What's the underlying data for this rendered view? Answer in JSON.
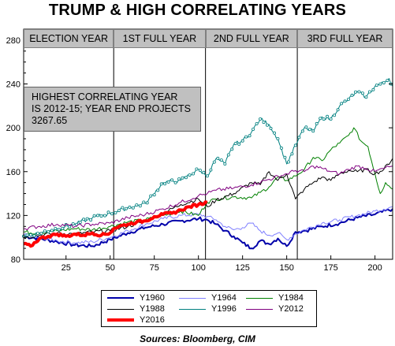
{
  "chart_data": {
    "type": "line",
    "title": "TRUMP & HIGH CORRELATING YEARS",
    "source": "Sources:  Bloomberg, CIM",
    "xlim": [
      1,
      210
    ],
    "ylim": [
      80,
      290
    ],
    "x_ticks": [
      25,
      50,
      75,
      100,
      125,
      150,
      175,
      200
    ],
    "y_ticks": [
      80,
      120,
      160,
      200,
      240,
      280
    ],
    "grid": false,
    "legend_position": "bottom",
    "phases": [
      {
        "label": "ELECTION YEAR",
        "start": 1,
        "end": 52
      },
      {
        "label": "1ST FULL YEAR",
        "start": 52,
        "end": 104
      },
      {
        "label": "2ND FULL YEAR",
        "start": 104,
        "end": 156
      },
      {
        "label": "3RD FULL YEAR",
        "start": 156,
        "end": 210
      }
    ],
    "phase_dividers": [
      52,
      104,
      156
    ],
    "annotation": [
      "HIGHEST CORRELATING YEAR",
      "IS 2012-15; YEAR END PROJECTS",
      "3267.65"
    ],
    "series": [
      {
        "name": "Y1960",
        "color": "#0000aa",
        "width": 2,
        "marker": false,
        "points": [
          [
            1,
            101
          ],
          [
            10,
            99
          ],
          [
            20,
            96
          ],
          [
            30,
            93
          ],
          [
            40,
            92
          ],
          [
            50,
            98
          ],
          [
            60,
            104
          ],
          [
            70,
            109
          ],
          [
            80,
            112
          ],
          [
            90,
            115
          ],
          [
            100,
            117
          ],
          [
            105,
            116
          ],
          [
            110,
            112
          ],
          [
            115,
            106
          ],
          [
            120,
            101
          ],
          [
            125,
            95
          ],
          [
            130,
            90
          ],
          [
            135,
            97
          ],
          [
            140,
            94
          ],
          [
            145,
            99
          ],
          [
            150,
            92
          ],
          [
            155,
            105
          ],
          [
            160,
            106
          ],
          [
            170,
            110
          ],
          [
            180,
            113
          ],
          [
            190,
            118
          ],
          [
            200,
            121
          ],
          [
            210,
            126
          ]
        ]
      },
      {
        "name": "Y1964",
        "color": "#8080ff",
        "width": 1,
        "marker": false,
        "points": [
          [
            1,
            102
          ],
          [
            10,
            100
          ],
          [
            20,
            97
          ],
          [
            30,
            95
          ],
          [
            40,
            96
          ],
          [
            50,
            100
          ],
          [
            60,
            106
          ],
          [
            70,
            112
          ],
          [
            80,
            117
          ],
          [
            90,
            120
          ],
          [
            100,
            121
          ],
          [
            105,
            119
          ],
          [
            110,
            116
          ],
          [
            115,
            110
          ],
          [
            120,
            107
          ],
          [
            125,
            109
          ],
          [
            130,
            113
          ],
          [
            135,
            106
          ],
          [
            140,
            102
          ],
          [
            145,
            104
          ],
          [
            150,
            98
          ],
          [
            155,
            103
          ],
          [
            160,
            107
          ],
          [
            170,
            113
          ],
          [
            180,
            116
          ],
          [
            190,
            120
          ],
          [
            200,
            124
          ],
          [
            210,
            128
          ]
        ]
      },
      {
        "name": "Y1984",
        "color": "#008000",
        "width": 1,
        "marker": false,
        "points": [
          [
            1,
            105
          ],
          [
            10,
            104
          ],
          [
            20,
            106
          ],
          [
            30,
            108
          ],
          [
            40,
            107
          ],
          [
            50,
            110
          ],
          [
            60,
            114
          ],
          [
            70,
            116
          ],
          [
            80,
            120
          ],
          [
            90,
            124
          ],
          [
            100,
            120
          ],
          [
            105,
            132
          ],
          [
            110,
            135
          ],
          [
            120,
            137
          ],
          [
            130,
            136
          ],
          [
            135,
            141
          ],
          [
            140,
            146
          ],
          [
            145,
            155
          ],
          [
            150,
            152
          ],
          [
            155,
            156
          ],
          [
            160,
            162
          ],
          [
            165,
            173
          ],
          [
            170,
            170
          ],
          [
            175,
            180
          ],
          [
            180,
            186
          ],
          [
            185,
            193
          ],
          [
            188,
            200
          ],
          [
            192,
            188
          ],
          [
            196,
            183
          ],
          [
            200,
            158
          ],
          [
            203,
            140
          ],
          [
            206,
            150
          ],
          [
            210,
            144
          ]
        ]
      },
      {
        "name": "Y1988",
        "color": "#000000",
        "width": 1,
        "marker": false,
        "points": [
          [
            1,
            100
          ],
          [
            10,
            102
          ],
          [
            20,
            104
          ],
          [
            30,
            103
          ],
          [
            40,
            105
          ],
          [
            50,
            106
          ],
          [
            60,
            110
          ],
          [
            70,
            115
          ],
          [
            80,
            122
          ],
          [
            90,
            130
          ],
          [
            100,
            135
          ],
          [
            105,
            128
          ],
          [
            110,
            134
          ],
          [
            120,
            140
          ],
          [
            130,
            150
          ],
          [
            135,
            148
          ],
          [
            140,
            160
          ],
          [
            145,
            152
          ],
          [
            150,
            158
          ],
          [
            155,
            135
          ],
          [
            160,
            144
          ],
          [
            165,
            150
          ],
          [
            170,
            155
          ],
          [
            175,
            152
          ],
          [
            180,
            158
          ],
          [
            185,
            161
          ],
          [
            190,
            160
          ],
          [
            195,
            162
          ],
          [
            200,
            158
          ],
          [
            205,
            162
          ],
          [
            210,
            172
          ]
        ]
      },
      {
        "name": "Y1996",
        "color": "#008080",
        "width": 1,
        "marker": true,
        "points": [
          [
            1,
            101
          ],
          [
            10,
            104
          ],
          [
            20,
            108
          ],
          [
            30,
            112
          ],
          [
            40,
            118
          ],
          [
            50,
            122
          ],
          [
            60,
            127
          ],
          [
            70,
            131
          ],
          [
            80,
            150
          ],
          [
            90,
            152
          ],
          [
            100,
            162
          ],
          [
            105,
            156
          ],
          [
            110,
            172
          ],
          [
            115,
            167
          ],
          [
            120,
            185
          ],
          [
            125,
            188
          ],
          [
            130,
            196
          ],
          [
            135,
            208
          ],
          [
            140,
            203
          ],
          [
            145,
            190
          ],
          [
            150,
            167
          ],
          [
            155,
            184
          ],
          [
            160,
            200
          ],
          [
            165,
            197
          ],
          [
            170,
            210
          ],
          [
            175,
            208
          ],
          [
            180,
            220
          ],
          [
            185,
            226
          ],
          [
            190,
            233
          ],
          [
            195,
            228
          ],
          [
            200,
            238
          ],
          [
            205,
            241
          ],
          [
            208,
            245
          ],
          [
            210,
            238
          ]
        ]
      },
      {
        "name": "Y2012",
        "color": "#800080",
        "width": 1,
        "marker": false,
        "points": [
          [
            1,
            108
          ],
          [
            10,
            110
          ],
          [
            20,
            112
          ],
          [
            30,
            110
          ],
          [
            40,
            112
          ],
          [
            50,
            113
          ],
          [
            60,
            118
          ],
          [
            70,
            121
          ],
          [
            80,
            126
          ],
          [
            90,
            132
          ],
          [
            100,
            138
          ],
          [
            105,
            140
          ],
          [
            110,
            143
          ],
          [
            120,
            145
          ],
          [
            130,
            148
          ],
          [
            140,
            153
          ],
          [
            150,
            158
          ],
          [
            155,
            161
          ],
          [
            160,
            160
          ],
          [
            165,
            165
          ],
          [
            170,
            163
          ],
          [
            175,
            160
          ],
          [
            180,
            158
          ],
          [
            185,
            162
          ],
          [
            190,
            165
          ],
          [
            195,
            163
          ],
          [
            200,
            160
          ],
          [
            205,
            163
          ],
          [
            210,
            165
          ]
        ]
      },
      {
        "name": "Y2016",
        "color": "#ff0000",
        "width": 4,
        "marker": false,
        "points": [
          [
            1,
            94
          ],
          [
            5,
            92
          ],
          [
            10,
            99
          ],
          [
            15,
            101
          ],
          [
            20,
            103
          ],
          [
            25,
            101
          ],
          [
            30,
            103
          ],
          [
            35,
            102
          ],
          [
            40,
            104
          ],
          [
            45,
            102
          ],
          [
            50,
            104
          ],
          [
            52,
            108
          ],
          [
            55,
            110
          ],
          [
            60,
            112
          ],
          [
            65,
            114
          ],
          [
            70,
            115
          ],
          [
            75,
            119
          ],
          [
            80,
            121
          ],
          [
            85,
            122
          ],
          [
            90,
            125
          ],
          [
            95,
            128
          ],
          [
            100,
            130
          ],
          [
            105,
            132
          ]
        ]
      }
    ]
  }
}
